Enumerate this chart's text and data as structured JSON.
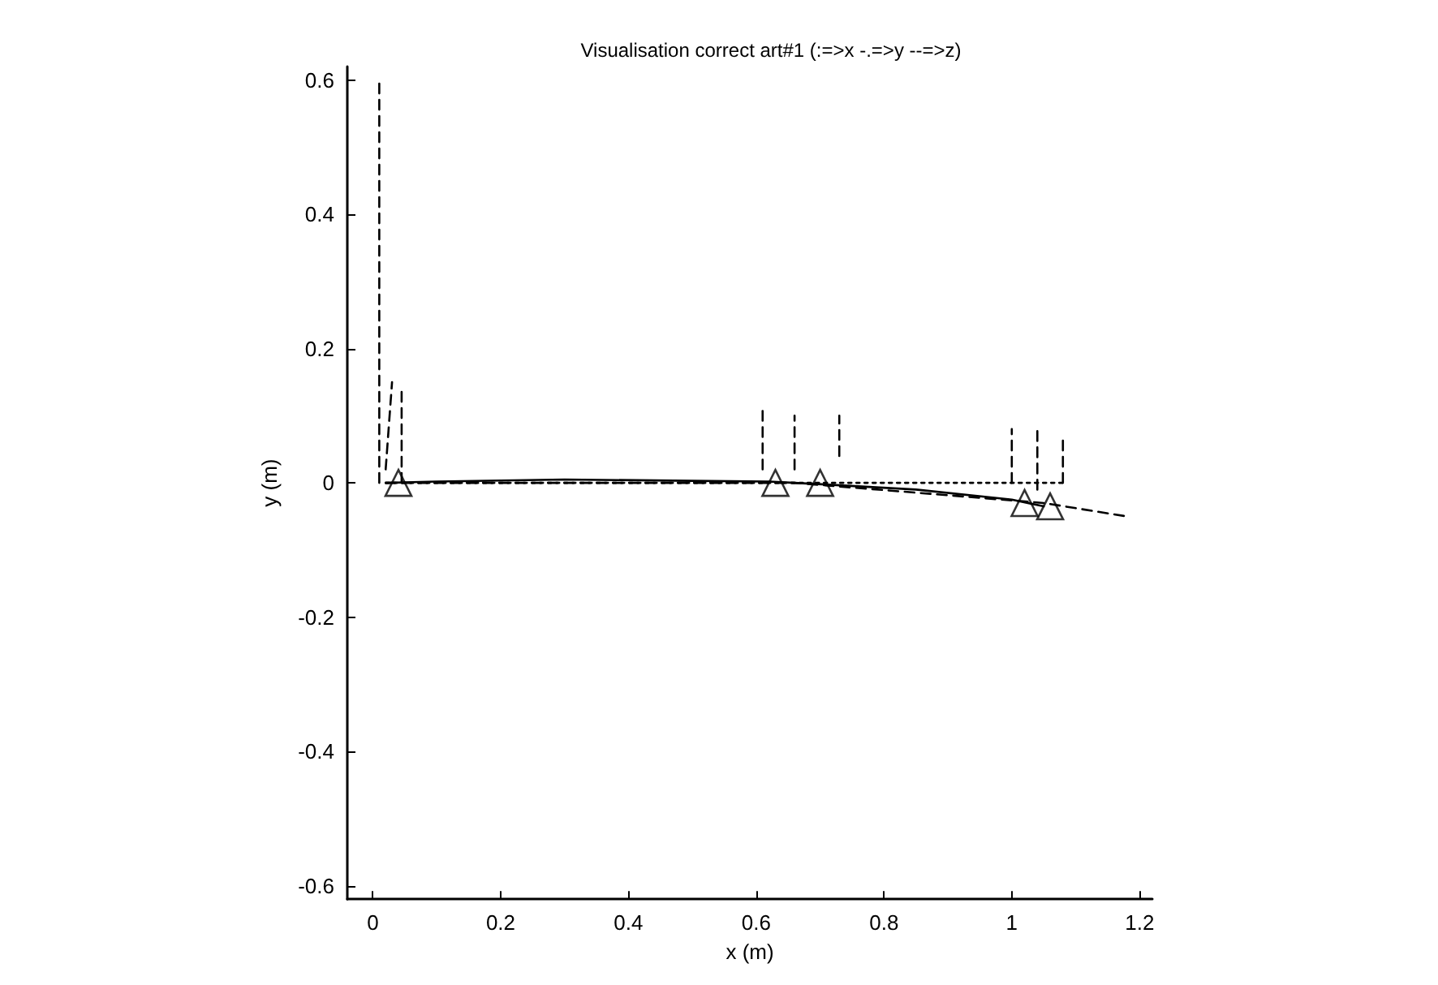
{
  "chart_data": {
    "type": "line",
    "title": "Visualisation correct art#1 (:=>x -.=>y --=>z)",
    "xlabel": "x (m)",
    "ylabel": "y (m)",
    "xlim": [
      -0.04,
      1.22
    ],
    "ylim": [
      -0.62,
      0.62
    ],
    "xticks": [
      0,
      0.2,
      0.4,
      0.6,
      0.8,
      1,
      1.2
    ],
    "yticks": [
      -0.6,
      -0.4,
      -0.2,
      0,
      0.2,
      0.4,
      0.6
    ],
    "grid": false,
    "series": [
      {
        "color": "#000000",
        "line_style": "solid",
        "x": [
          0.02,
          0.1,
          0.3,
          0.5,
          0.62,
          0.66,
          0.72,
          0.85,
          1.0,
          1.05
        ],
        "values": [
          0,
          0.002,
          0.005,
          0.003,
          0.002,
          0,
          -0.003,
          -0.01,
          -0.025,
          -0.035
        ]
      },
      {
        "color": "#000000",
        "line_style": "dashed",
        "x": [
          0.02,
          0.66,
          1.05,
          1.18
        ],
        "values": [
          0,
          0,
          -0.03,
          -0.05
        ]
      },
      {
        "color": "#000000",
        "line_style": "dotted",
        "x": [
          0.02,
          1.08
        ],
        "values": [
          0,
          0
        ]
      },
      {
        "color": "#000000",
        "line_style": "dashed",
        "x": [
          0.01,
          0.01
        ],
        "values": [
          0,
          0.6
        ]
      },
      {
        "color": "#000000",
        "line_style": "dashed",
        "x": [
          0.02,
          0.03
        ],
        "values": [
          0.02,
          0.15
        ]
      },
      {
        "color": "#000000",
        "line_style": "dashed",
        "x": [
          0.045,
          0.045
        ],
        "values": [
          0,
          0.14
        ]
      },
      {
        "color": "#000000",
        "line_style": "dashed",
        "x": [
          0.61,
          0.61
        ],
        "values": [
          0.02,
          0.11
        ]
      },
      {
        "color": "#000000",
        "line_style": "dashed",
        "x": [
          0.66,
          0.66
        ],
        "values": [
          0.02,
          0.1
        ]
      },
      {
        "color": "#000000",
        "line_style": "dashed",
        "x": [
          0.73,
          0.73
        ],
        "values": [
          0.04,
          0.1
        ]
      },
      {
        "color": "#000000",
        "line_style": "dashed",
        "x": [
          1.0,
          1.0
        ],
        "values": [
          0,
          0.08
        ]
      },
      {
        "color": "#000000",
        "line_style": "dashed",
        "x": [
          1.04,
          1.04
        ],
        "values": [
          -0.01,
          0.08
        ]
      },
      {
        "color": "#000000",
        "line_style": "dashed",
        "x": [
          1.08,
          1.08
        ],
        "values": [
          0,
          0.07
        ]
      },
      {
        "type": "scatter",
        "color": "#000000",
        "marker": "triangle",
        "x": [
          0.04,
          0.63,
          0.7,
          1.02,
          1.06
        ],
        "values": [
          0,
          0,
          0,
          -0.03,
          -0.035
        ]
      }
    ]
  }
}
